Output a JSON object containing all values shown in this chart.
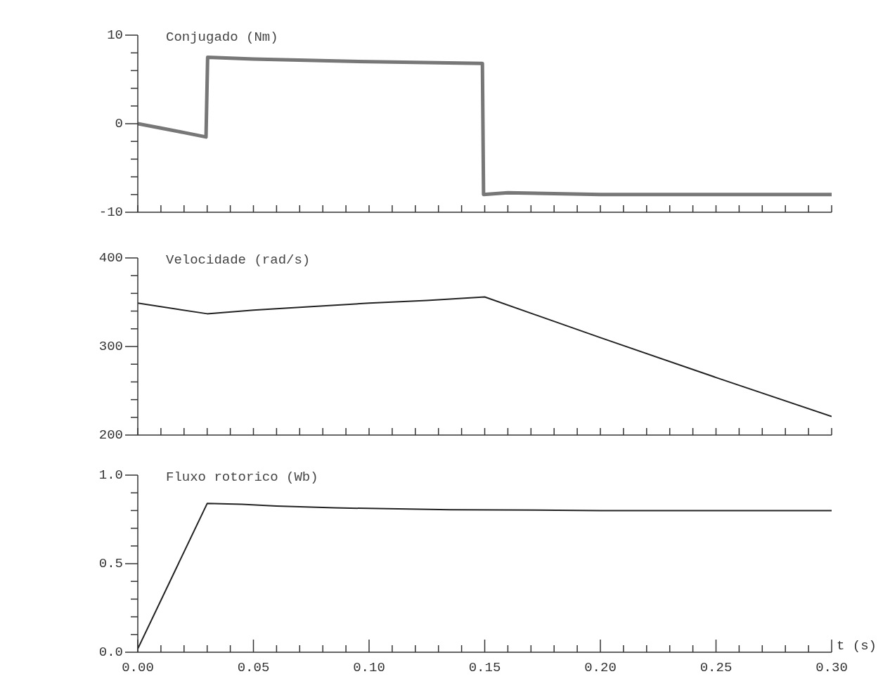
{
  "chart_data": [
    {
      "type": "line",
      "title": "Conjugado (Nm)",
      "xlim": [
        0,
        0.3
      ],
      "ylim": [
        -10,
        10
      ],
      "tick_labels": "y",
      "grid": false,
      "marker": "none",
      "line_style": "solid",
      "xticks": [
        {
          "value": 0,
          "label": null
        },
        {
          "value": 0.01,
          "label": null
        },
        {
          "value": 0.02,
          "label": null
        },
        {
          "value": 0.03,
          "label": null
        },
        {
          "value": 0.04,
          "label": null
        },
        {
          "value": 0.05,
          "label": null
        },
        {
          "value": 0.06,
          "label": null
        },
        {
          "value": 0.07,
          "label": null
        },
        {
          "value": 0.08,
          "label": null
        },
        {
          "value": 0.09,
          "label": null
        },
        {
          "value": 0.1,
          "label": null
        },
        {
          "value": 0.11,
          "label": null
        },
        {
          "value": 0.12,
          "label": null
        },
        {
          "value": 0.13,
          "label": null
        },
        {
          "value": 0.14,
          "label": null
        },
        {
          "value": 0.15,
          "label": null
        },
        {
          "value": 0.16,
          "label": null
        },
        {
          "value": 0.17,
          "label": null
        },
        {
          "value": 0.18,
          "label": null
        },
        {
          "value": 0.19,
          "label": null
        },
        {
          "value": 0.2,
          "label": null
        },
        {
          "value": 0.21,
          "label": null
        },
        {
          "value": 0.22,
          "label": null
        },
        {
          "value": 0.23,
          "label": null
        },
        {
          "value": 0.24,
          "label": null
        },
        {
          "value": 0.25,
          "label": null
        },
        {
          "value": 0.26,
          "label": null
        },
        {
          "value": 0.27,
          "label": null
        },
        {
          "value": 0.28,
          "label": null
        },
        {
          "value": 0.29,
          "label": null
        },
        {
          "value": 0.3,
          "label": null
        }
      ],
      "yticks": [
        -10,
        {
          "value": -8,
          "label": null
        },
        {
          "value": -6,
          "label": null
        },
        {
          "value": -4,
          "label": null
        },
        {
          "value": -2,
          "label": null
        },
        0,
        {
          "value": 2,
          "label": null
        },
        {
          "value": 4,
          "label": null
        },
        {
          "value": 6,
          "label": null
        },
        {
          "value": 8,
          "label": null
        },
        10
      ],
      "series": [
        {
          "color": "#777777",
          "x": [
            0,
            0.01,
            0.02,
            0.0295,
            0.0302,
            0.05,
            0.1,
            0.149,
            0.1495,
            0.16,
            0.2,
            0.25,
            0.3
          ],
          "values": [
            0,
            -0.5,
            -1,
            -1.5,
            7.5,
            7.3,
            7,
            6.8,
            -8,
            -7.8,
            -8,
            -8,
            -8
          ]
        }
      ]
    },
    {
      "type": "line",
      "title": "Velocidade (rad/s)",
      "xlim": [
        0,
        0.3
      ],
      "ylim": [
        200,
        400
      ],
      "tick_labels": "y",
      "grid": false,
      "marker": "none",
      "line_style": "solid",
      "xticks": [
        {
          "value": 0,
          "label": null
        },
        {
          "value": 0.01,
          "label": null
        },
        {
          "value": 0.02,
          "label": null
        },
        {
          "value": 0.03,
          "label": null
        },
        {
          "value": 0.04,
          "label": null
        },
        {
          "value": 0.05,
          "label": null
        },
        {
          "value": 0.06,
          "label": null
        },
        {
          "value": 0.07,
          "label": null
        },
        {
          "value": 0.08,
          "label": null
        },
        {
          "value": 0.09,
          "label": null
        },
        {
          "value": 0.1,
          "label": null
        },
        {
          "value": 0.11,
          "label": null
        },
        {
          "value": 0.12,
          "label": null
        },
        {
          "value": 0.13,
          "label": null
        },
        {
          "value": 0.14,
          "label": null
        },
        {
          "value": 0.15,
          "label": null
        },
        {
          "value": 0.16,
          "label": null
        },
        {
          "value": 0.17,
          "label": null
        },
        {
          "value": 0.18,
          "label": null
        },
        {
          "value": 0.19,
          "label": null
        },
        {
          "value": 0.2,
          "label": null
        },
        {
          "value": 0.21,
          "label": null
        },
        {
          "value": 0.22,
          "label": null
        },
        {
          "value": 0.23,
          "label": null
        },
        {
          "value": 0.24,
          "label": null
        },
        {
          "value": 0.25,
          "label": null
        },
        {
          "value": 0.26,
          "label": null
        },
        {
          "value": 0.27,
          "label": null
        },
        {
          "value": 0.28,
          "label": null
        },
        {
          "value": 0.29,
          "label": null
        },
        {
          "value": 0.3,
          "label": null
        }
      ],
      "yticks": [
        200,
        {
          "value": 220,
          "label": null
        },
        {
          "value": 240,
          "label": null
        },
        {
          "value": 260,
          "label": null
        },
        {
          "value": 280,
          "label": null
        },
        300,
        {
          "value": 320,
          "label": null
        },
        {
          "value": 340,
          "label": null
        },
        {
          "value": 360,
          "label": null
        },
        {
          "value": 380,
          "label": null
        },
        400
      ],
      "series": [
        {
          "color": "#222222",
          "x": [
            0,
            0.03,
            0.05,
            0.075,
            0.1,
            0.125,
            0.15,
            0.2,
            0.25,
            0.3
          ],
          "values": [
            349,
            337,
            341,
            345,
            349,
            352,
            356,
            310,
            265,
            221
          ]
        }
      ]
    },
    {
      "type": "line",
      "title": "Fluxo rotorico (Wb)",
      "xlabel": "t (s)",
      "xlim": [
        0,
        0.3
      ],
      "ylim": [
        0,
        1
      ],
      "grid": false,
      "marker": "none",
      "line_style": "solid",
      "xticks": [
        {
          "value": 0,
          "label": "0.00"
        },
        {
          "value": 0.01,
          "label": null
        },
        {
          "value": 0.02,
          "label": null
        },
        {
          "value": 0.03,
          "label": null
        },
        {
          "value": 0.04,
          "label": null
        },
        {
          "value": 0.05,
          "label": "0.05"
        },
        {
          "value": 0.06,
          "label": null
        },
        {
          "value": 0.07,
          "label": null
        },
        {
          "value": 0.08,
          "label": null
        },
        {
          "value": 0.09,
          "label": null
        },
        {
          "value": 0.1,
          "label": "0.10"
        },
        {
          "value": 0.11,
          "label": null
        },
        {
          "value": 0.12,
          "label": null
        },
        {
          "value": 0.13,
          "label": null
        },
        {
          "value": 0.14,
          "label": null
        },
        {
          "value": 0.15,
          "label": "0.15"
        },
        {
          "value": 0.16,
          "label": null
        },
        {
          "value": 0.17,
          "label": null
        },
        {
          "value": 0.18,
          "label": null
        },
        {
          "value": 0.19,
          "label": null
        },
        {
          "value": 0.2,
          "label": "0.20"
        },
        {
          "value": 0.21,
          "label": null
        },
        {
          "value": 0.22,
          "label": null
        },
        {
          "value": 0.23,
          "label": null
        },
        {
          "value": 0.24,
          "label": null
        },
        {
          "value": 0.25,
          "label": "0.25"
        },
        {
          "value": 0.26,
          "label": null
        },
        {
          "value": 0.27,
          "label": null
        },
        {
          "value": 0.28,
          "label": null
        },
        {
          "value": 0.29,
          "label": null
        },
        {
          "value": 0.3,
          "label": "0.30"
        }
      ],
      "yticks": [
        {
          "value": 0,
          "label": "0.0"
        },
        {
          "value": 0.1,
          "label": null
        },
        {
          "value": 0.2,
          "label": null
        },
        {
          "value": 0.3,
          "label": null
        },
        {
          "value": 0.4,
          "label": null
        },
        {
          "value": 0.5,
          "label": "0.5"
        },
        {
          "value": 0.6,
          "label": null
        },
        {
          "value": 0.7,
          "label": null
        },
        {
          "value": 0.8,
          "label": null
        },
        {
          "value": 0.9,
          "label": null
        },
        {
          "value": 1,
          "label": "1.0"
        }
      ],
      "series": [
        {
          "color": "#222222",
          "x": [
            0,
            0.03,
            0.045,
            0.06,
            0.085,
            0.135,
            0.2,
            0.3
          ],
          "values": [
            0.02,
            0.84,
            0.835,
            0.825,
            0.815,
            0.805,
            0.8,
            0.8
          ]
        }
      ]
    }
  ]
}
